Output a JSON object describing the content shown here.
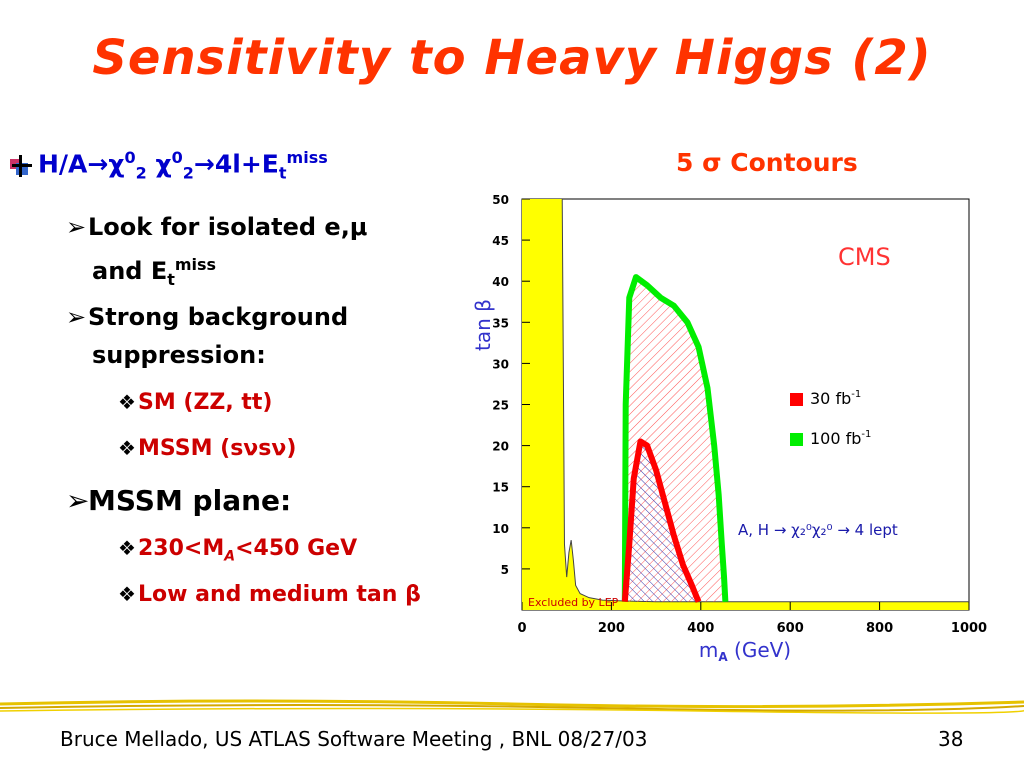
{
  "slide": {
    "title": "Sensitivity to Heavy Higgs (2)",
    "footer_left": "Bruce Mellado, US ATLAS Software Meeting , BNL 08/27/03",
    "slide_number": "38"
  },
  "bullets": {
    "main_prefix": "H/A",
    "main_chi": "χ",
    "main_sup0": "0",
    "main_sub2": "2",
    "main_suffix": "4l+E",
    "main_sub_t": "t",
    "main_sup_miss": "miss",
    "sub1_line1": "Look for isolated e,μ",
    "sub1_line2": "and E",
    "sub1_sub_t": "t",
    "sub1_sup_miss": "miss",
    "sub2_line1": "Strong background",
    "sub2_line2": "suppression:",
    "sub2_item1": "SM (ZZ, tt)",
    "sub2_item2": "MSSM (sνsν)",
    "sub3": "MSSM plane:",
    "sub3_item1_prefix": "230<M",
    "sub3_item1_sub": "A",
    "sub3_item1_suffix": "<450 GeV",
    "sub3_item2": "Low and medium tan β"
  },
  "plot_heading": "5 σ Contours",
  "chart_data": {
    "type": "line",
    "xlabel": "m",
    "xlabel_sub": "A",
    "xlabel_unit": "(GeV)",
    "ylabel": "tan β",
    "xlim": [
      0,
      1000
    ],
    "ylim": [
      0,
      50
    ],
    "x_ticks": [
      0,
      200,
      400,
      600,
      800,
      1000
    ],
    "y_ticks": [
      5,
      10,
      15,
      20,
      25,
      30,
      35,
      40,
      45,
      50
    ],
    "annotations": {
      "experiment": "CMS",
      "excluded": "Excluded by LEP",
      "process": "A, H → χ₂⁰χ₂⁰ → 4 lept"
    },
    "series": [
      {
        "name": "30 fb⁻¹",
        "legend_label": "30 fb",
        "legend_sup": "-1",
        "color": "#ff0000",
        "x": [
          230,
          240,
          250,
          265,
          280,
          300,
          320,
          340,
          360,
          380,
          395
        ],
        "y": [
          1,
          8,
          16,
          20.5,
          20,
          17,
          13,
          9,
          5.5,
          3,
          1
        ]
      },
      {
        "name": "100 fb⁻¹",
        "legend_label": "100 fb",
        "legend_sup": "-1",
        "color": "#00ee00",
        "x": [
          230,
          232,
          240,
          255,
          280,
          310,
          340,
          370,
          395,
          415,
          430,
          440,
          447,
          452,
          455
        ],
        "y": [
          1,
          25,
          38,
          40.5,
          39.5,
          38,
          37,
          35,
          32,
          27,
          20,
          14,
          8,
          4,
          1
        ]
      }
    ],
    "lep_excluded_curve": {
      "x": [
        90,
        95,
        100,
        105,
        110,
        115,
        120,
        130,
        150,
        180,
        230,
        300,
        1000
      ],
      "y": [
        50,
        8,
        4,
        7,
        8.5,
        6,
        3,
        2,
        1.5,
        1.2,
        1.1,
        1,
        1
      ]
    },
    "colors": {
      "excluded_fill": "#ffff00",
      "axis_label": "#3333cc",
      "cms_label": "#ff3333",
      "process_label": "#1a1aaa"
    }
  }
}
